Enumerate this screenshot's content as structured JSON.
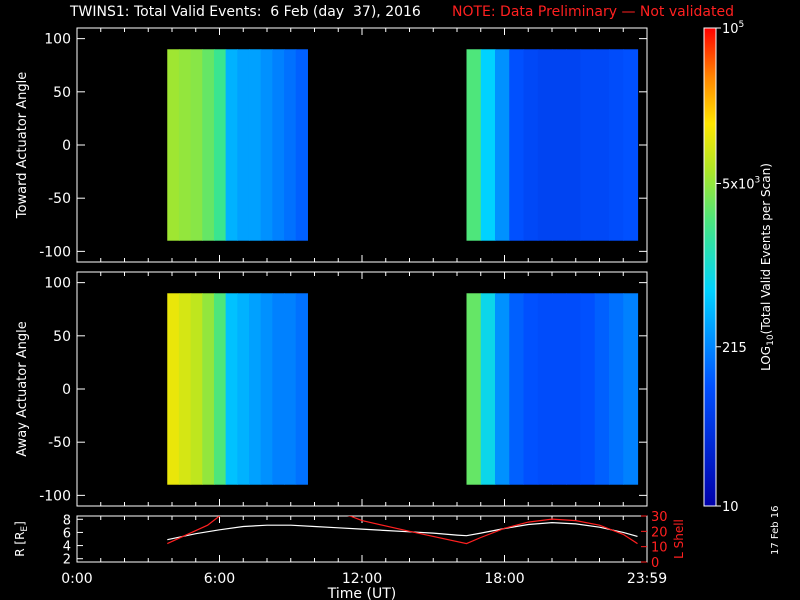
{
  "header": {
    "title": "TWINS1: Total Valid Events:  6 Feb (day  37), 2016",
    "note": "NOTE: Data Preliminary — Not validated"
  },
  "footer": {
    "date_stamp": "17 Feb 16"
  },
  "chart_data": [
    {
      "type": "heatmap",
      "panel": "top",
      "ylabel": "Toward Actuator Angle",
      "ylim": [
        -110,
        110
      ],
      "yticks": [
        "100",
        "50",
        "0",
        "-50",
        "-100"
      ],
      "xlim_hours": [
        0,
        24
      ],
      "data_blocks_hours": [
        [
          3.8,
          9.7
        ],
        [
          16.4,
          23.6
        ]
      ],
      "data_angle_range": [
        -90,
        90
      ],
      "log10_color_profile": {
        "block1": [
          3.75,
          3.7,
          3.65,
          3.5,
          3.3,
          2.6,
          2.5,
          2.5,
          2.4,
          2.3,
          2.2,
          2.1
        ],
        "block2": [
          3.4,
          2.8,
          2.4,
          2.0,
          1.9,
          1.85,
          1.85,
          1.85,
          1.9,
          1.9,
          1.95,
          2.0
        ]
      }
    },
    {
      "type": "heatmap",
      "panel": "middle",
      "ylabel": "Away Actuator Angle",
      "ylim": [
        -110,
        110
      ],
      "yticks": [
        "100",
        "50",
        "0",
        "-50",
        "-100"
      ],
      "xlim_hours": [
        0,
        24
      ],
      "data_blocks_hours": [
        [
          3.8,
          9.7
        ],
        [
          16.4,
          23.6
        ]
      ],
      "data_angle_range": [
        -90,
        90
      ],
      "log10_color_profile": {
        "block1": [
          4.1,
          4.0,
          3.9,
          3.7,
          3.4,
          2.7,
          2.6,
          2.5,
          2.4,
          2.3,
          2.3,
          2.2
        ],
        "block2": [
          3.5,
          2.9,
          2.4,
          2.1,
          2.0,
          1.95,
          1.95,
          1.95,
          2.0,
          2.1,
          2.2,
          2.3
        ]
      }
    },
    {
      "type": "line",
      "panel": "bottom",
      "xlabel": "Time (UT)",
      "xticks": [
        "0:00",
        "6:00",
        "12:00",
        "18:00",
        "23:59"
      ],
      "xtick_hours": [
        0,
        6,
        12,
        18,
        24
      ],
      "ylabel_left": "R [R",
      "ylabel_left_sub": "E",
      "ylabel_left_close": "]",
      "ylabel_right": "L Shell",
      "ylim_left": [
        1.5,
        8.5
      ],
      "yticks_left": [
        "2",
        "4",
        "6",
        "8"
      ],
      "ylim_right": [
        0,
        30
      ],
      "yticks_right": [
        "0",
        "10",
        "20",
        "30"
      ],
      "series": [
        {
          "color": "#ffffff",
          "axis": "left",
          "x": [
            3.8,
            5,
            6,
            7,
            8,
            9,
            10,
            11,
            12,
            13,
            14,
            15,
            16,
            16.4,
            17,
            18,
            19,
            20,
            21,
            22,
            23,
            23.6
          ],
          "y": [
            4.9,
            5.8,
            6.4,
            6.9,
            7.1,
            7.1,
            6.9,
            6.7,
            6.5,
            6.3,
            6.1,
            5.9,
            5.6,
            5.5,
            5.9,
            6.6,
            7.2,
            7.5,
            7.3,
            6.8,
            6.0,
            5.4
          ]
        },
        {
          "color": "#ff2020",
          "axis": "right",
          "x": [
            3.8,
            5.5,
            6.0,
            6.1,
            11.2,
            11.5,
            12,
            14,
            16.4,
            17,
            18,
            19,
            20,
            21,
            22,
            23,
            23.6
          ],
          "y": [
            12,
            24,
            30,
            31,
            31,
            30,
            27,
            20,
            12,
            16,
            22,
            26,
            28,
            27,
            24,
            18,
            12
          ]
        }
      ]
    },
    {
      "type": "colorbar",
      "label": "LOG",
      "label_sub": "10",
      "label_rest": "(Total Valid  Events per Scan)",
      "ticks": [
        {
          "log10": 1.0,
          "label": "10"
        },
        {
          "log10": 2.3324,
          "label": "215"
        },
        {
          "log10": 3.699,
          "label": "5x10",
          "sup": "3"
        },
        {
          "log10": 5.0,
          "label": "10",
          "sup": "5"
        }
      ],
      "range_log10": [
        1,
        5
      ]
    }
  ]
}
